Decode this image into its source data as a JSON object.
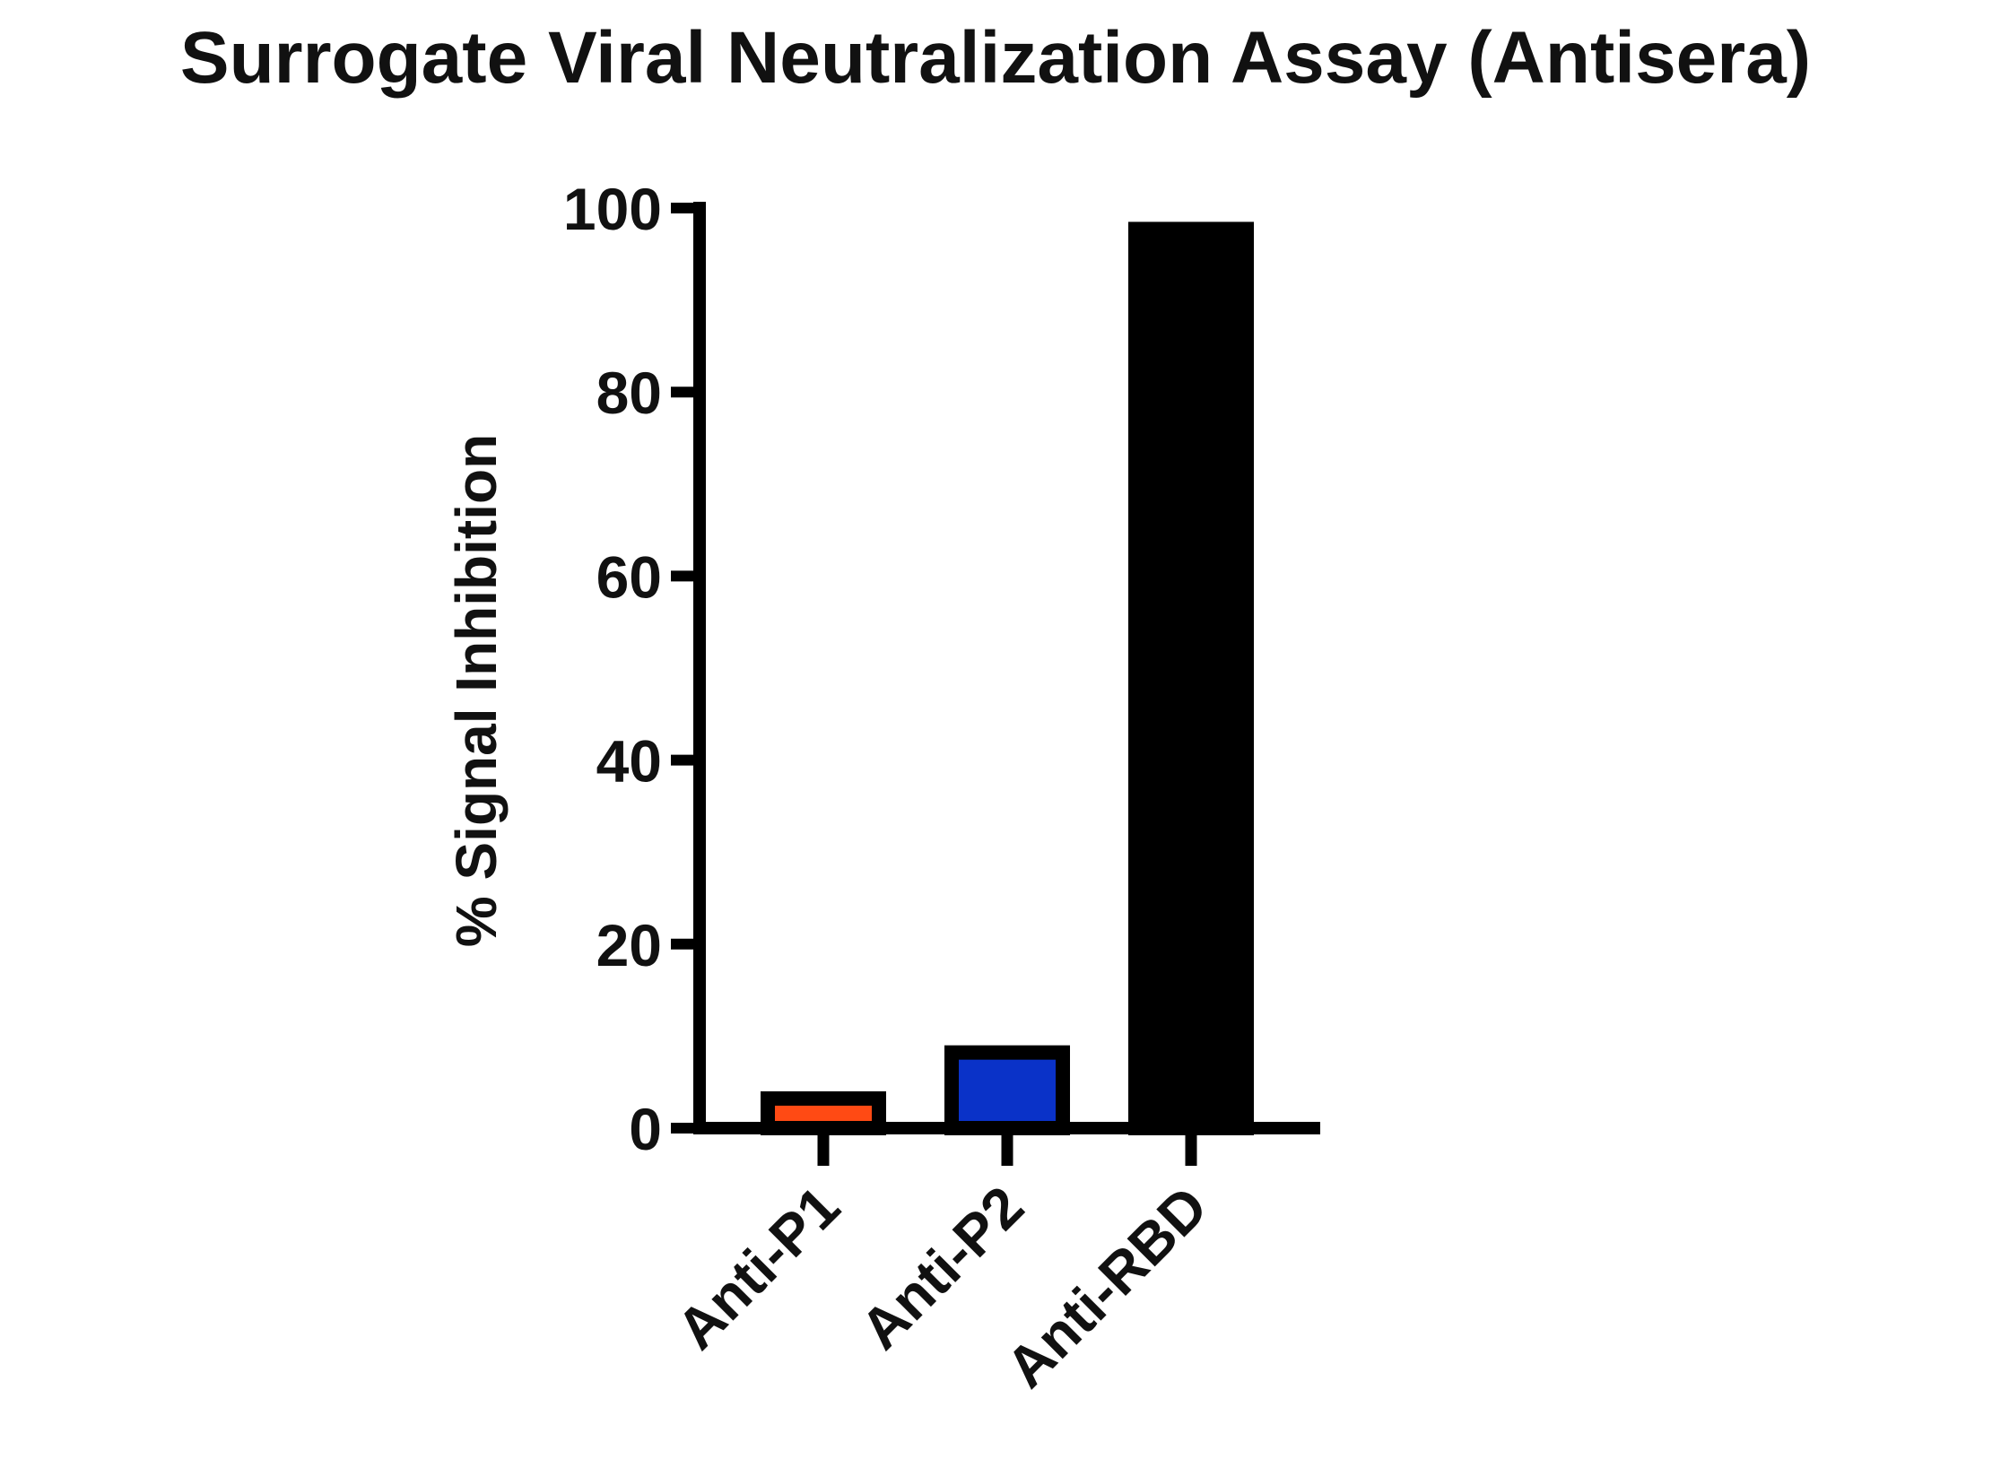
{
  "chart_data": {
    "type": "bar",
    "title": "Surrogate Viral Neutralization Assay (Antisera)",
    "xlabel": "",
    "ylabel": "% Signal Inhibition",
    "ylim": [
      0,
      100
    ],
    "yticks": [
      0,
      20,
      40,
      60,
      80,
      100
    ],
    "categories": [
      "Anti-P1",
      "Anti-P2",
      "Anti-RBD"
    ],
    "values": [
      4,
      9,
      98.5
    ],
    "colors": [
      "#ff4a14",
      "#0a32c8",
      "#000000"
    ],
    "grid": false
  }
}
